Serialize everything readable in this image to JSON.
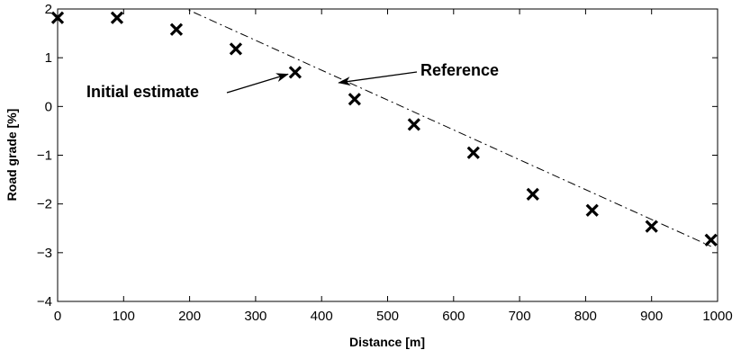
{
  "chart_data": {
    "type": "scatter",
    "title": "",
    "xlabel": "Distance [m]",
    "ylabel": "Road grade [%]",
    "xlim": [
      0,
      1000
    ],
    "ylim": [
      -4,
      2
    ],
    "xticks": [
      0,
      100,
      200,
      300,
      400,
      500,
      600,
      700,
      800,
      900,
      1000
    ],
    "xtick_labels": [
      "0",
      "100",
      "200",
      "300",
      "400",
      "500",
      "600",
      "700",
      "800",
      "900",
      "1000"
    ],
    "yticks": [
      -4,
      -3,
      -2,
      -1,
      0,
      1,
      2
    ],
    "ytick_labels": [
      "−4",
      "−3",
      "−2",
      "−1",
      "0",
      "1",
      "2"
    ],
    "grid": false,
    "legend": "none",
    "series": [
      {
        "marker": "x",
        "style": "markers",
        "x": [
          0,
          90,
          180,
          270,
          360,
          450,
          540,
          630,
          720,
          810,
          900,
          990
        ],
        "y": [
          1.82,
          1.82,
          1.58,
          1.18,
          0.7,
          0.15,
          -0.37,
          -0.95,
          -1.8,
          -2.13,
          -2.46,
          -2.74
        ]
      },
      {
        "style": "dash-dot line",
        "x": [
          0,
          195,
          990
        ],
        "y": [
          2,
          2,
          -2.87
        ]
      }
    ],
    "annotations": [
      {
        "text": "Initial estimate",
        "target": [
          360,
          0.7
        ],
        "arrow": true
      },
      {
        "text": "Reference",
        "target": [
          430,
          0.45
        ],
        "arrow": true
      }
    ]
  }
}
